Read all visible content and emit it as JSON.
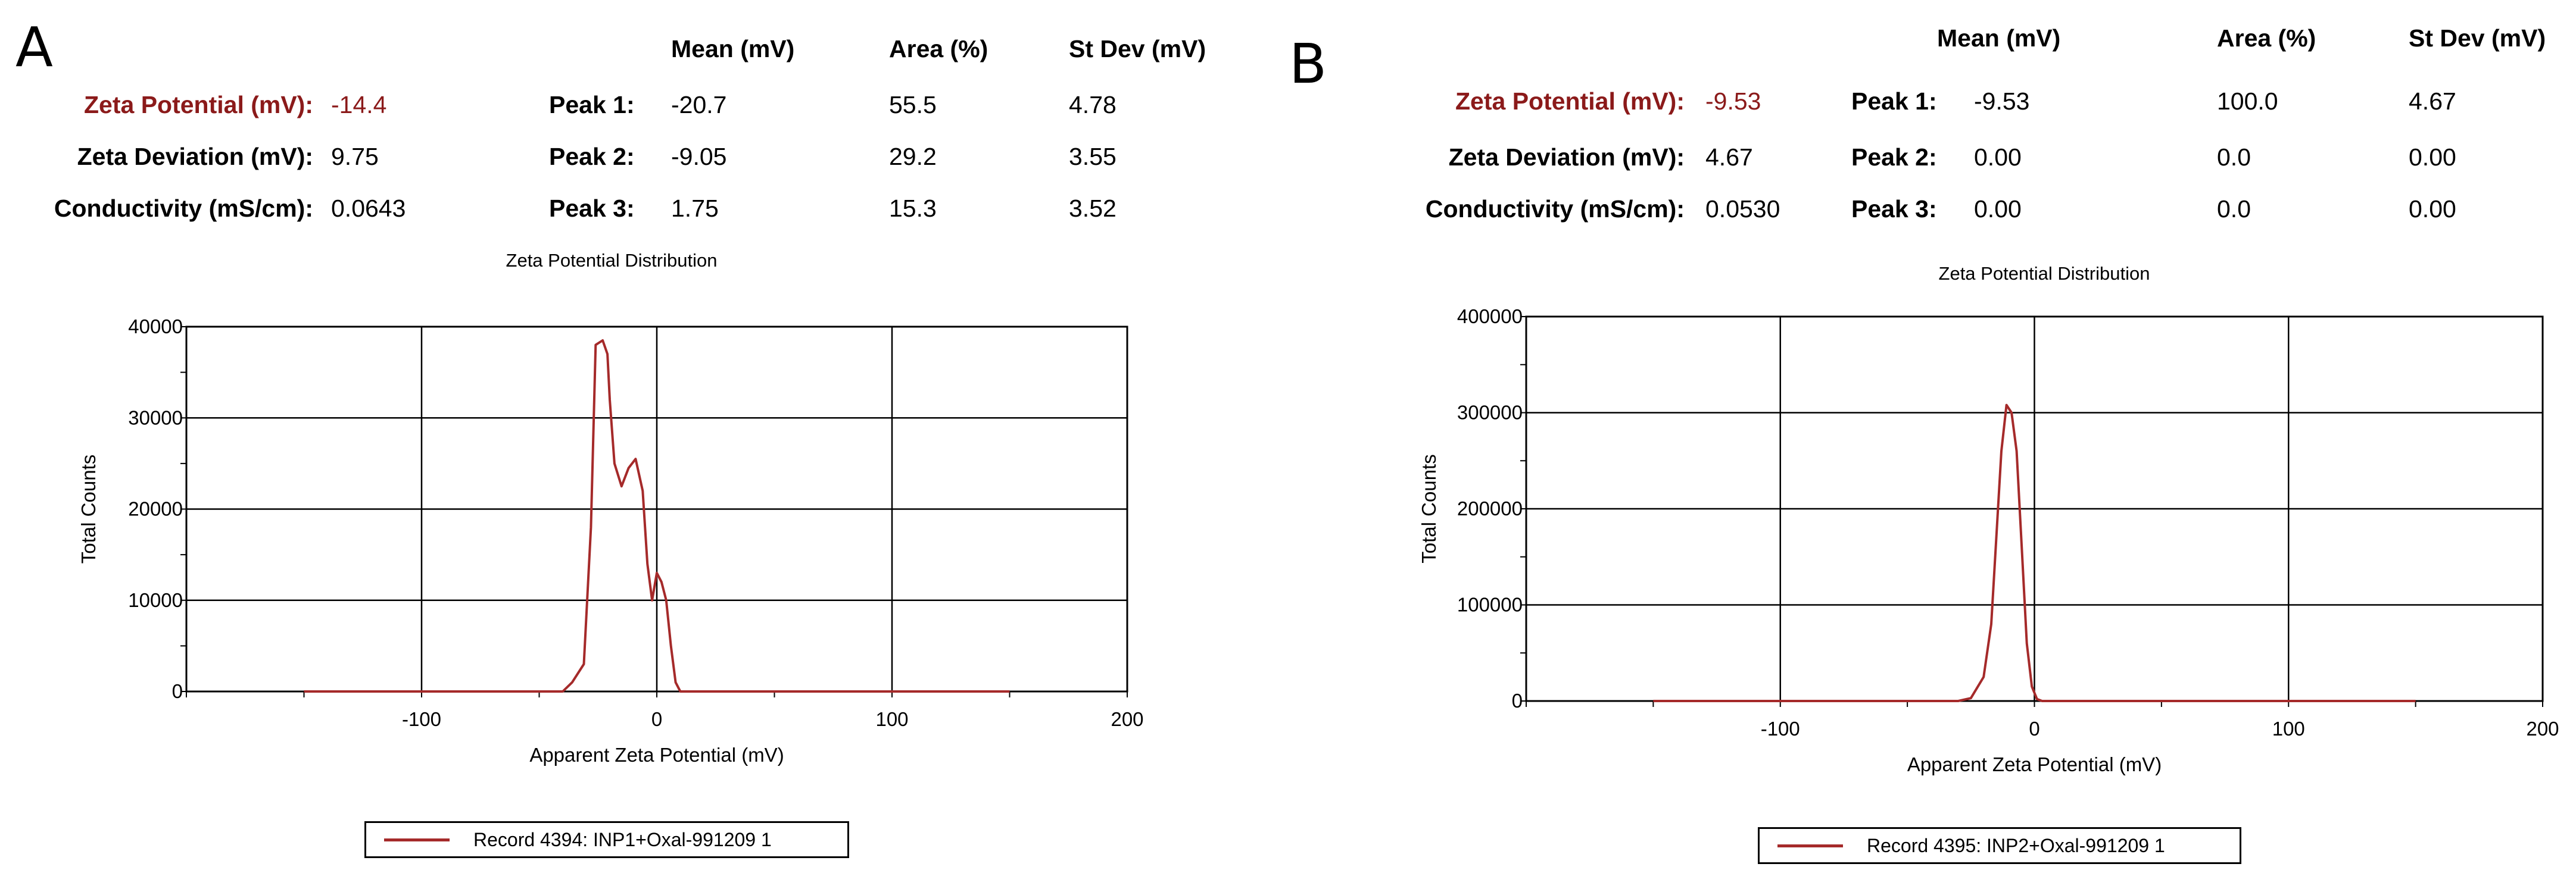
{
  "headers": {
    "mean": "Mean (mV)",
    "area": "Area (%)",
    "stdev": "St Dev (mV)"
  },
  "colors": {
    "series": "#a52a2a",
    "label_red": "#8b1a1a"
  },
  "panels": [
    {
      "letter": "A",
      "summary": [
        {
          "label": "Zeta Potential (mV):",
          "value": "-14.4"
        },
        {
          "label": "Zeta Deviation (mV):",
          "value": "9.75"
        },
        {
          "label": "Conductivity (mS/cm):",
          "value": "0.0643"
        }
      ],
      "peaks": [
        {
          "label": "Peak 1:",
          "mean": "-20.7",
          "area": "55.5",
          "stdev": "4.78"
        },
        {
          "label": "Peak 2:",
          "mean": "-9.05",
          "area": "29.2",
          "stdev": "3.55"
        },
        {
          "label": "Peak 3:",
          "mean": "1.75",
          "area": "15.3",
          "stdev": "3.52"
        }
      ],
      "legend": "Record 4394: INP1+Oxal-991209 1"
    },
    {
      "letter": "B",
      "summary": [
        {
          "label": "Zeta Potential (mV):",
          "value": "-9.53"
        },
        {
          "label": "Zeta Deviation (mV):",
          "value": "4.67"
        },
        {
          "label": "Conductivity (mS/cm):",
          "value": "0.0530"
        }
      ],
      "peaks": [
        {
          "label": "Peak 1:",
          "mean": "-9.53",
          "area": "100.0",
          "stdev": "4.67"
        },
        {
          "label": "Peak 2:",
          "mean": "0.00",
          "area": "0.0",
          "stdev": "0.00"
        },
        {
          "label": "Peak 3:",
          "mean": "0.00",
          "area": "0.0",
          "stdev": "0.00"
        }
      ],
      "legend": "Record 4395: INP2+Oxal-991209 1"
    }
  ],
  "chart_data": [
    {
      "type": "line",
      "title": "Zeta Potential Distribution",
      "xlabel": "Apparent Zeta Potential (mV)",
      "ylabel": "Total Counts",
      "xlim": [
        -200,
        200
      ],
      "ylim": [
        0,
        40000
      ],
      "xticks": [
        -100,
        0,
        100,
        200
      ],
      "yticks": [
        0,
        10000,
        20000,
        30000,
        40000
      ],
      "grid": true,
      "legend_position": "bottom",
      "series": [
        {
          "name": "Record 4394: INP1+Oxal-991209 1",
          "x": [
            -150,
            -40,
            -36,
            -31,
            -28,
            -26,
            -23,
            -21,
            -20,
            -18,
            -15,
            -12,
            -9,
            -6,
            -4,
            -2,
            0,
            2,
            4,
            6,
            8,
            10,
            12,
            30,
            150
          ],
          "y": [
            0,
            0,
            1000,
            3000,
            18000,
            38000,
            38500,
            37000,
            32000,
            25000,
            22500,
            24500,
            25500,
            22000,
            14000,
            10000,
            13000,
            12000,
            10000,
            5000,
            1000,
            0,
            0,
            0,
            0
          ]
        }
      ]
    },
    {
      "type": "line",
      "title": "Zeta Potential Distribution",
      "xlabel": "Apparent Zeta Potential (mV)",
      "ylabel": "Total Counts",
      "xlim": [
        -200,
        200
      ],
      "ylim": [
        0,
        400000
      ],
      "xticks": [
        -100,
        0,
        100,
        200
      ],
      "yticks": [
        0,
        100000,
        200000,
        300000,
        400000
      ],
      "grid": true,
      "legend_position": "bottom",
      "series": [
        {
          "name": "Record 4395: INP2+Oxal-991209 1",
          "x": [
            -150,
            -30,
            -25,
            -20,
            -17,
            -15,
            -13,
            -11,
            -9,
            -7,
            -5,
            -3,
            -1,
            1,
            3,
            150
          ],
          "y": [
            0,
            0,
            3000,
            25000,
            80000,
            170000,
            260000,
            308000,
            300000,
            260000,
            160000,
            60000,
            15000,
            2000,
            0,
            0
          ]
        }
      ]
    }
  ]
}
